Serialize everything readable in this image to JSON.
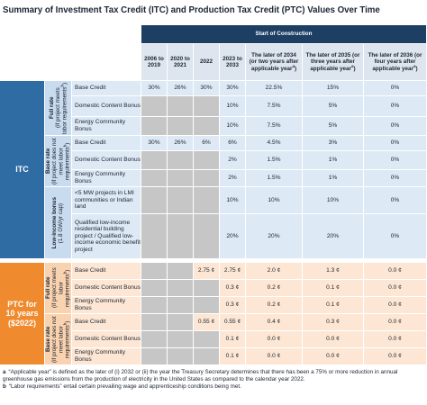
{
  "title": "Summary of Investment Tax Credit (ITC) and Production Tax Credit (PTC) Values Over Time",
  "header": {
    "group": "Start of Construction",
    "columns": [
      {
        "text": "2006 to 2019"
      },
      {
        "text": "2020 to 2021"
      },
      {
        "text": "2022"
      },
      {
        "text": "2023 to 2033"
      },
      {
        "text": "The later of 2034 (or two years after applicable year",
        "sup": "a",
        "after": ")"
      },
      {
        "text": "The later of 2035 (or three years after applicable year",
        "sup": "a",
        "after": ")"
      },
      {
        "text": "The later of 2036 (or four years after applicable year",
        "sup": "a",
        "after": ")"
      }
    ]
  },
  "sections": [
    {
      "label": "ITC",
      "groups": [
        {
          "label": "Full rate",
          "sublabel": "(if project meets labor requirements",
          "sup": "b",
          "after": ")",
          "rows": [
            {
              "label": "Base Credit",
              "cells": [
                "30%",
                "26%",
                "30%",
                "30%",
                "22.5%",
                "15%",
                "0%"
              ]
            },
            {
              "label": "Domestic Content Bonus",
              "cells": [
                null,
                null,
                null,
                "10%",
                "7.5%",
                "5%",
                "0%"
              ]
            },
            {
              "label": "Energy Community Bonus",
              "cells": [
                null,
                null,
                null,
                "10%",
                "7.5%",
                "5%",
                "0%"
              ]
            }
          ]
        },
        {
          "label": "Base rate",
          "sublabel": "(if project does not meet labor requirements",
          "sup": "b",
          "after": ")",
          "rows": [
            {
              "label": "Base Credit",
              "cells": [
                "30%",
                "26%",
                "6%",
                "6%",
                "4.5%",
                "3%",
                "0%"
              ]
            },
            {
              "label": "Domestic Content Bonus",
              "cells": [
                null,
                null,
                null,
                "2%",
                "1.5%",
                "1%",
                "0%"
              ]
            },
            {
              "label": "Energy Community Bonus",
              "cells": [
                null,
                null,
                null,
                "2%",
                "1.5%",
                "1%",
                "0%"
              ]
            }
          ]
        },
        {
          "label": "Low-income bonus",
          "sublabel": "(1.8 GW/yr cap)",
          "rows": [
            {
              "label": "<5 MW projects in LMI communities or Indian land",
              "cells": [
                null,
                null,
                null,
                "10%",
                "10%",
                "10%",
                "0%"
              ]
            },
            {
              "label": "Qualified low-income residential building project / Qualified low-income economic benefit project",
              "cells": [
                null,
                null,
                null,
                "20%",
                "20%",
                "20%",
                "0%"
              ]
            }
          ]
        }
      ]
    },
    {
      "label": "PTC for 10 years ($2022)",
      "groups": [
        {
          "label": "Full rate",
          "sublabel": "(if project meets labor requirements",
          "sup": "b",
          "after": ")",
          "rows": [
            {
              "label": "Base Credit",
              "cells": [
                null,
                null,
                "2.75 ¢",
                "2.75 ¢",
                "2.0 ¢",
                "1.3 ¢",
                "0.0 ¢"
              ]
            },
            {
              "label": "Domestic Content Bonus",
              "cells": [
                null,
                null,
                null,
                "0.3 ¢",
                "0.2 ¢",
                "0.1 ¢",
                "0.0 ¢"
              ]
            },
            {
              "label": "Energy Community Bonus",
              "cells": [
                null,
                null,
                null,
                "0.3 ¢",
                "0.2 ¢",
                "0.1 ¢",
                "0.0 ¢"
              ]
            }
          ]
        },
        {
          "label": "Base rate",
          "sublabel": "(if project does not meet labor requirements",
          "sup": "b",
          "after": ")",
          "rows": [
            {
              "label": "Base Credit",
              "cells": [
                null,
                null,
                "0.55 ¢",
                "0.55 ¢",
                "0.4 ¢",
                "0.3 ¢",
                "0.0 ¢"
              ]
            },
            {
              "label": "Domestic Content Bonus",
              "cells": [
                null,
                null,
                null,
                "0.1 ¢",
                "0.0 ¢",
                "0.0 ¢",
                "0.0 ¢"
              ]
            },
            {
              "label": "Energy Community Bonus",
              "cells": [
                null,
                null,
                null,
                "0.1 ¢",
                "0.0 ¢",
                "0.0 ¢",
                "0.0 ¢"
              ]
            }
          ]
        }
      ]
    }
  ],
  "footnotes": [
    {
      "mark": "a",
      "text": "“Applicable year” is defined as the later of (i) 2032 or (ii) the year the Treasury Secretary determines that there has been a 75% or more reduction in annual greenhouse gas emissions from the production of electricity in the United States as compared to the calendar year 2022."
    },
    {
      "mark": "b",
      "text": "“Labor requirements” entail certain prevailing wage and apprenticeship conditions being met."
    }
  ]
}
